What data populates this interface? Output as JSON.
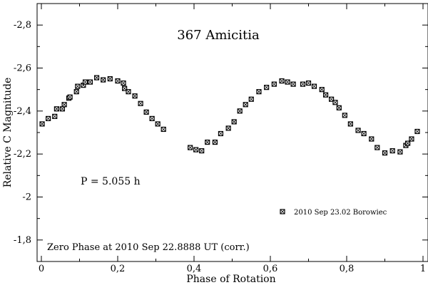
{
  "chart_data": {
    "type": "scatter",
    "title": "367 Amicitia",
    "xlabel": "Phase of Rotation",
    "ylabel": "Relative C Magnitude",
    "xlim": [
      0,
      1
    ],
    "ylim": [
      -1.7,
      -2.9
    ],
    "y_inverted": true,
    "grid": false,
    "x_ticks": [
      0,
      0.2,
      0.4,
      0.6,
      0.8,
      1
    ],
    "x_tick_labels": [
      "0",
      "0,2",
      "0,4",
      "0,6",
      "0,8",
      "1"
    ],
    "y_ticks": [
      -1.8,
      -2.0,
      -2.2,
      -2.4,
      -2.6,
      -2.8
    ],
    "y_tick_labels": [
      "-1,8",
      "-2",
      "-2,2",
      "-2,4",
      "-2,6",
      "-2,8"
    ],
    "annotations": {
      "period": "P = 5.055 h",
      "zero_phase": "Zero Phase at 2010 Sep 22.8888 UT (corr.)"
    },
    "legend_position": "right-lower",
    "marker_color": "#000000",
    "series": [
      {
        "name": "2010 Sep 23.02 Borowiec",
        "x": [
          0.002,
          0.018,
          0.035,
          0.04,
          0.055,
          0.06,
          0.072,
          0.075,
          0.092,
          0.095,
          0.11,
          0.115,
          0.128,
          0.145,
          0.162,
          0.18,
          0.2,
          0.215,
          0.218,
          0.228,
          0.245,
          0.26,
          0.275,
          0.29,
          0.305,
          0.32,
          0.39,
          0.405,
          0.42,
          0.435,
          0.455,
          0.47,
          0.49,
          0.505,
          0.52,
          0.535,
          0.55,
          0.57,
          0.59,
          0.61,
          0.63,
          0.645,
          0.66,
          0.685,
          0.7,
          0.715,
          0.735,
          0.745,
          0.76,
          0.77,
          0.78,
          0.795,
          0.81,
          0.83,
          0.845,
          0.865,
          0.88,
          0.9,
          0.92,
          0.94,
          0.955,
          0.96,
          0.97,
          0.985
        ],
        "y": [
          -2.34,
          -2.365,
          -2.375,
          -2.41,
          -2.41,
          -2.43,
          -2.46,
          -2.465,
          -2.49,
          -2.515,
          -2.52,
          -2.535,
          -2.535,
          -2.555,
          -2.545,
          -2.55,
          -2.54,
          -2.53,
          -2.505,
          -2.49,
          -2.47,
          -2.435,
          -2.395,
          -2.365,
          -2.34,
          -2.315,
          -2.23,
          -2.22,
          -2.215,
          -2.255,
          -2.255,
          -2.295,
          -2.32,
          -2.35,
          -2.4,
          -2.43,
          -2.455,
          -2.49,
          -2.51,
          -2.525,
          -2.54,
          -2.535,
          -2.525,
          -2.525,
          -2.53,
          -2.515,
          -2.5,
          -2.475,
          -2.455,
          -2.44,
          -2.415,
          -2.38,
          -2.34,
          -2.31,
          -2.295,
          -2.27,
          -2.23,
          -2.205,
          -2.215,
          -2.21,
          -2.24,
          -2.25,
          -2.27,
          -2.305
        ]
      }
    ]
  }
}
